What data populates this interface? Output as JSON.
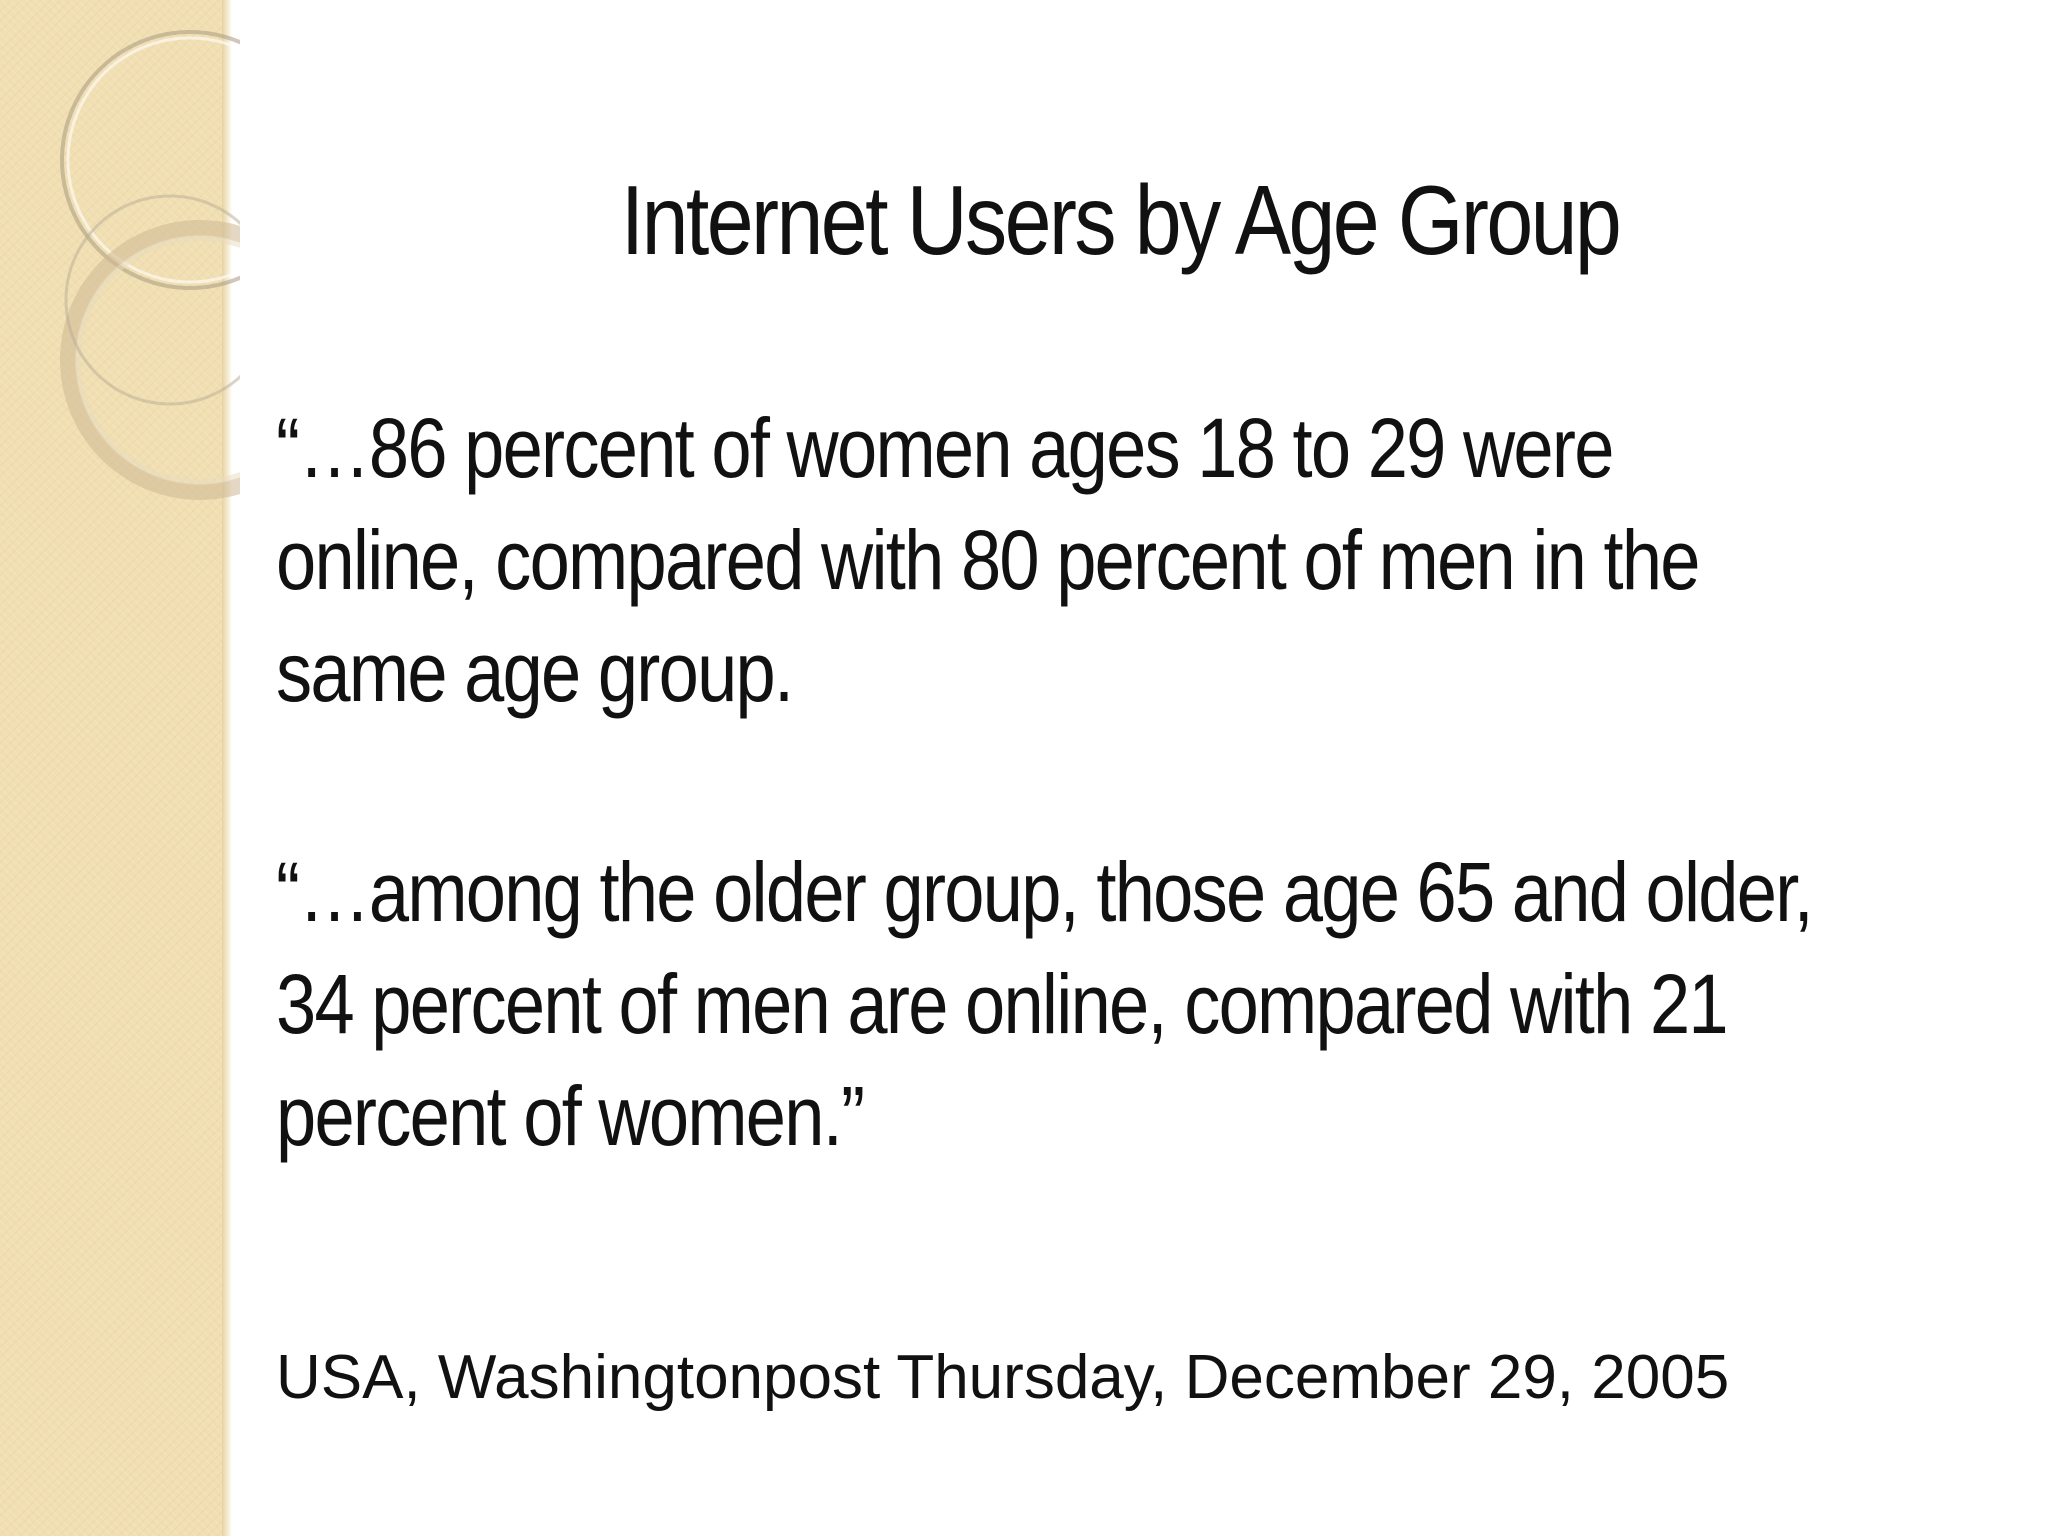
{
  "slide": {
    "title": "Internet Users by Age Group",
    "quote1": {
      "lines": [
        "“…86 percent of women ages 18 to 29 were",
        "online, compared with 80 percent of men in the",
        "same age group."
      ]
    },
    "quote2": {
      "lines": [
        "“…among the older group, those age 65 and older,",
        "34 percent of men are online, compared with 21",
        "percent of women.”"
      ]
    },
    "source": "USA, Washingtonpost Thursday, December 29, 2005"
  },
  "theme": {
    "band_color": "#f1dfb2",
    "ring_color": "#c9b48a",
    "text_color": "#111111"
  }
}
